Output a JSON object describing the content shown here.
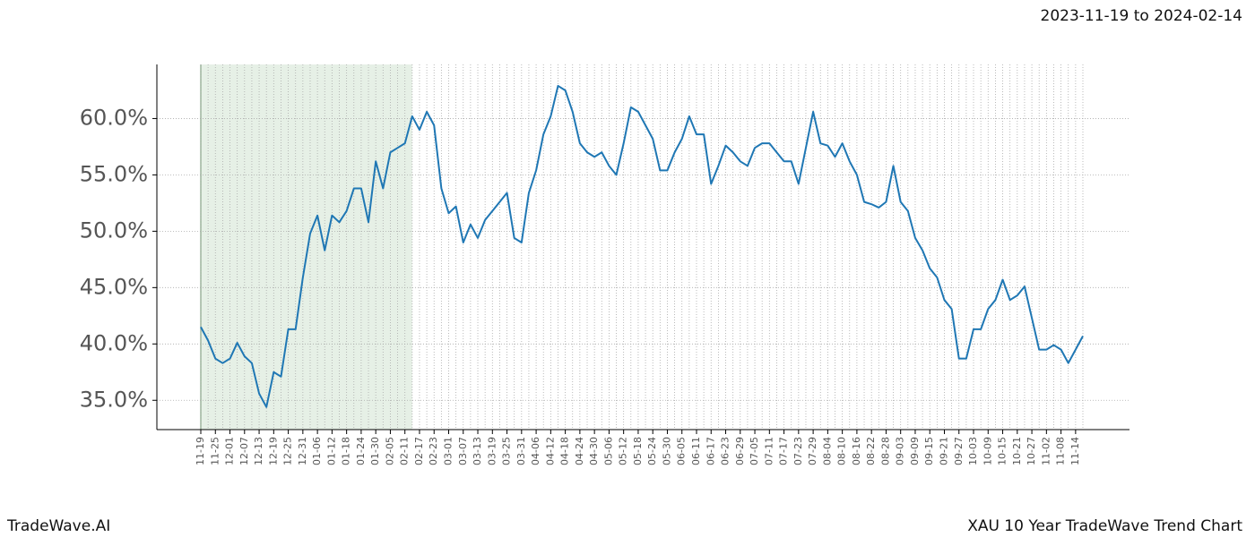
{
  "chart_data": {
    "type": "line",
    "title": "2023-11-19 to 2024-02-14",
    "brand": "TradeWave.AI",
    "subtitle": "XAU 10 Year TradeWave Trend Chart",
    "categories": [
      "11-19",
      null,
      "11-25",
      null,
      "12-01",
      null,
      "12-07",
      null,
      "12-13",
      null,
      "12-19",
      null,
      "12-25",
      null,
      "12-31",
      null,
      "01-06",
      null,
      "01-12",
      null,
      "01-18",
      null,
      "01-24",
      null,
      "01-30",
      null,
      "02-05",
      null,
      "02-11",
      null,
      "02-17",
      null,
      "02-23",
      null,
      "03-01",
      null,
      "03-07",
      null,
      "03-13",
      null,
      "03-19",
      null,
      "03-25",
      null,
      "03-31",
      null,
      "04-06",
      null,
      "04-12",
      null,
      "04-18",
      null,
      "04-24",
      null,
      "04-30",
      null,
      "05-06",
      null,
      "05-12",
      null,
      "05-18",
      null,
      "05-24",
      null,
      "05-30",
      null,
      "06-05",
      null,
      "06-11",
      null,
      "06-17",
      null,
      "06-23",
      null,
      "06-29",
      null,
      "07-05",
      null,
      "07-11",
      null,
      "07-17",
      null,
      "07-23",
      null,
      "07-29",
      null,
      "08-04",
      null,
      "08-10",
      null,
      "08-16",
      null,
      "08-22",
      null,
      "08-28",
      null,
      "09-03",
      null,
      "09-09",
      null,
      "09-15",
      null,
      "09-21",
      null,
      "09-27",
      null,
      "10-03",
      null,
      "10-09",
      null,
      "10-15",
      null,
      "10-21",
      null,
      "10-27",
      null,
      "11-02",
      null,
      "11-08",
      null,
      "11-14",
      null
    ],
    "series": [
      {
        "color": "#1f77b4",
        "values": [
          41.5,
          40.3,
          38.7,
          38.3,
          38.7,
          40.1,
          38.9,
          38.3,
          35.6,
          34.4,
          37.5,
          37.1,
          41.3,
          41.3,
          45.9,
          49.8,
          51.4,
          48.3,
          51.4,
          50.8,
          51.8,
          53.8,
          53.8,
          50.8,
          56.2,
          53.8,
          57.0,
          57.4,
          57.8,
          60.2,
          59.0,
          60.6,
          59.4,
          53.8,
          51.6,
          52.2,
          49.0,
          50.6,
          49.4,
          51.0,
          51.8,
          52.6,
          53.4,
          49.4,
          49.0,
          53.4,
          55.4,
          58.6,
          60.2,
          62.9,
          62.5,
          60.6,
          57.8,
          57.0,
          56.6,
          57.0,
          55.8,
          55.0,
          57.8,
          61.0,
          60.6,
          59.4,
          58.2,
          55.4,
          55.4,
          57.0,
          58.2,
          60.2,
          58.6,
          58.6,
          54.2,
          55.8,
          57.6,
          57.0,
          56.2,
          55.8,
          57.4,
          57.8,
          57.8,
          57.0,
          56.2,
          56.2,
          54.2,
          57.4,
          60.6,
          57.8,
          57.6,
          56.6,
          57.8,
          56.2,
          55.0,
          52.6,
          52.4,
          52.1,
          52.6,
          55.8,
          52.6,
          51.8,
          49.4,
          48.3,
          46.7,
          45.9,
          43.9,
          43.1,
          38.7,
          38.7,
          41.3,
          41.3,
          43.1,
          43.9,
          45.7,
          43.9,
          44.3,
          45.1,
          42.3,
          39.5,
          39.5,
          39.9,
          39.5,
          38.3,
          39.5,
          40.7
        ]
      }
    ],
    "shaded_range": [
      0,
      29
    ],
    "shade_color": "#e6f0e6",
    "ylim": [
      32.4,
      64.8
    ],
    "yticks": [
      {
        "value": 35,
        "label": "35.0%"
      },
      {
        "value": 40,
        "label": "40.0%"
      },
      {
        "value": 45,
        "label": "45.0%"
      },
      {
        "value": 50,
        "label": "50.0%"
      },
      {
        "value": 55,
        "label": "55.0%"
      },
      {
        "value": 60,
        "label": "60.0%"
      }
    ],
    "grid": true
  }
}
